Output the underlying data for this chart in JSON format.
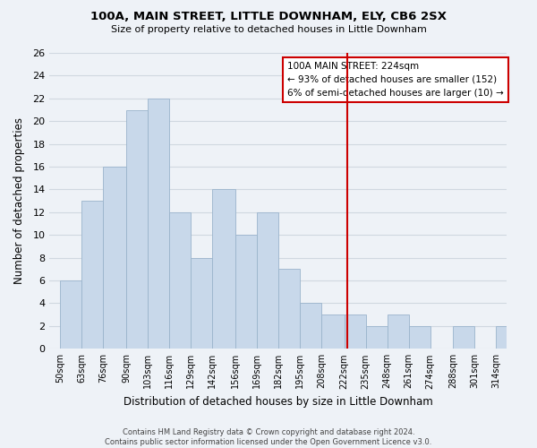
{
  "title": "100A, MAIN STREET, LITTLE DOWNHAM, ELY, CB6 2SX",
  "subtitle": "Size of property relative to detached houses in Little Downham",
  "xlabel": "Distribution of detached houses by size in Little Downham",
  "ylabel": "Number of detached properties",
  "footer_line1": "Contains HM Land Registry data © Crown copyright and database right 2024.",
  "footer_line2": "Contains public sector information licensed under the Open Government Licence v3.0.",
  "bin_labels": [
    "50sqm",
    "63sqm",
    "76sqm",
    "90sqm",
    "103sqm",
    "116sqm",
    "129sqm",
    "142sqm",
    "156sqm",
    "169sqm",
    "182sqm",
    "195sqm",
    "208sqm",
    "222sqm",
    "235sqm",
    "248sqm",
    "261sqm",
    "274sqm",
    "288sqm",
    "301sqm",
    "314sqm"
  ],
  "bin_edges": [
    50,
    63,
    76,
    90,
    103,
    116,
    129,
    142,
    156,
    169,
    182,
    195,
    208,
    222,
    235,
    248,
    261,
    274,
    288,
    301,
    314
  ],
  "bar_heights": [
    6,
    13,
    16,
    21,
    22,
    12,
    8,
    14,
    10,
    12,
    7,
    4,
    3,
    3,
    2,
    3,
    2,
    0,
    2,
    0,
    2
  ],
  "bar_color": "#c8d8ea",
  "bar_edge_color": "#9ab4cc",
  "grid_color": "#d0d8e0",
  "background_color": "#eef2f7",
  "vline_x": 224,
  "vline_color": "#cc0000",
  "annotation_title": "100A MAIN STREET: 224sqm",
  "annotation_line1": "← 93% of detached houses are smaller (152)",
  "annotation_line2": "6% of semi-detached houses are larger (10) →",
  "ylim": [
    0,
    26
  ],
  "yticks": [
    0,
    2,
    4,
    6,
    8,
    10,
    12,
    14,
    16,
    18,
    20,
    22,
    24,
    26
  ]
}
